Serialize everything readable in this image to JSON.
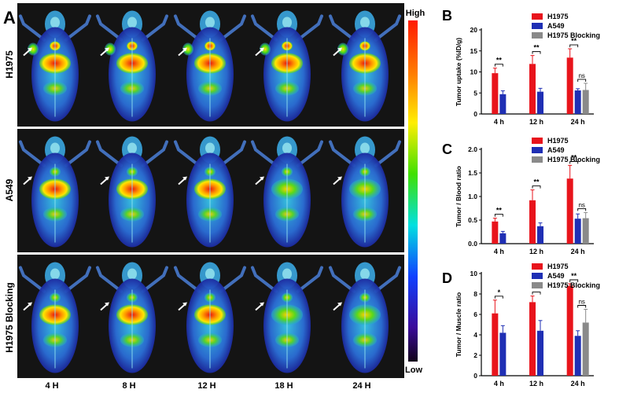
{
  "panel_a": {
    "letter": "A",
    "rows": [
      "H1975",
      "A549",
      "H1975 Blocking"
    ],
    "timepoints": [
      "4 H",
      "8 H",
      "12 H",
      "18 H",
      "24 H"
    ],
    "colorbar": {
      "high": "High",
      "low": "Low"
    }
  },
  "colors": {
    "H1975": "#e8141c",
    "A549": "#1f2fb4",
    "H1975 Blocking": "#8a8a8a"
  },
  "chart_data": [
    {
      "panel": "B",
      "type": "bar",
      "title": "",
      "xlabel": "",
      "ylabel": "Tumor uptake (%ID/g)",
      "categories": [
        "4 h",
        "12 h",
        "24 h"
      ],
      "ylim": [
        0,
        20
      ],
      "yticks": [
        0,
        5,
        10,
        15,
        20
      ],
      "legend_position": "top-right",
      "series": [
        {
          "name": "H1975",
          "values": [
            9.7,
            11.9,
            13.4
          ],
          "errors": [
            1.2,
            2.0,
            2.1
          ]
        },
        {
          "name": "A549",
          "values": [
            4.7,
            5.3,
            5.6
          ],
          "errors": [
            0.8,
            0.8,
            0.4
          ]
        },
        {
          "name": "H1975 Blocking",
          "values": [
            null,
            null,
            5.7
          ],
          "errors": [
            null,
            null,
            1.6
          ]
        }
      ],
      "annotations": [
        {
          "category": "4 h",
          "label": "**"
        },
        {
          "category": "12 h",
          "label": "**"
        },
        {
          "category": "24 h",
          "label": "**"
        },
        {
          "category": "24 h",
          "label": "ns"
        }
      ]
    },
    {
      "panel": "C",
      "type": "bar",
      "title": "",
      "xlabel": "",
      "ylabel": "Tumor / Blood ratio",
      "categories": [
        "4 h",
        "12 h",
        "24 h"
      ],
      "ylim": [
        0,
        2.0
      ],
      "yticks": [
        "0.0",
        "0.5",
        "1.0",
        "1.5",
        "2.0"
      ],
      "legend_position": "top-right",
      "series": [
        {
          "name": "H1975",
          "values": [
            0.47,
            0.92,
            1.38
          ],
          "errors": [
            0.07,
            0.22,
            0.28
          ]
        },
        {
          "name": "A549",
          "values": [
            0.22,
            0.37,
            0.53
          ],
          "errors": [
            0.04,
            0.07,
            0.1
          ]
        },
        {
          "name": "H1975 Blocking",
          "values": [
            null,
            null,
            0.54
          ],
          "errors": [
            null,
            null,
            0.12
          ]
        }
      ],
      "annotations": [
        {
          "category": "4 h",
          "label": "**"
        },
        {
          "category": "12 h",
          "label": "**"
        },
        {
          "category": "24 h",
          "label": "**"
        },
        {
          "category": "24 h",
          "label": "ns"
        }
      ]
    },
    {
      "panel": "D",
      "type": "bar",
      "title": "",
      "xlabel": "",
      "ylabel": "Tumor / Muscle ratio",
      "categories": [
        "4 h",
        "12 h",
        "24 h"
      ],
      "ylim": [
        0,
        10
      ],
      "yticks": [
        0,
        2,
        4,
        6,
        8,
        10
      ],
      "legend_position": "top-right",
      "series": [
        {
          "name": "H1975",
          "values": [
            6.1,
            7.2,
            8.8
          ],
          "errors": [
            1.3,
            0.6,
            0.2
          ]
        },
        {
          "name": "A549",
          "values": [
            4.2,
            4.4,
            3.9
          ],
          "errors": [
            0.7,
            1.0,
            0.5
          ]
        },
        {
          "name": "H1975 Blocking",
          "values": [
            null,
            null,
            5.2
          ],
          "errors": [
            null,
            null,
            1.3
          ]
        }
      ],
      "annotations": [
        {
          "category": "4 h",
          "label": "*"
        },
        {
          "category": "12 h",
          "label": "*"
        },
        {
          "category": "24 h",
          "label": "**"
        },
        {
          "category": "24 h",
          "label": "ns"
        }
      ]
    }
  ]
}
